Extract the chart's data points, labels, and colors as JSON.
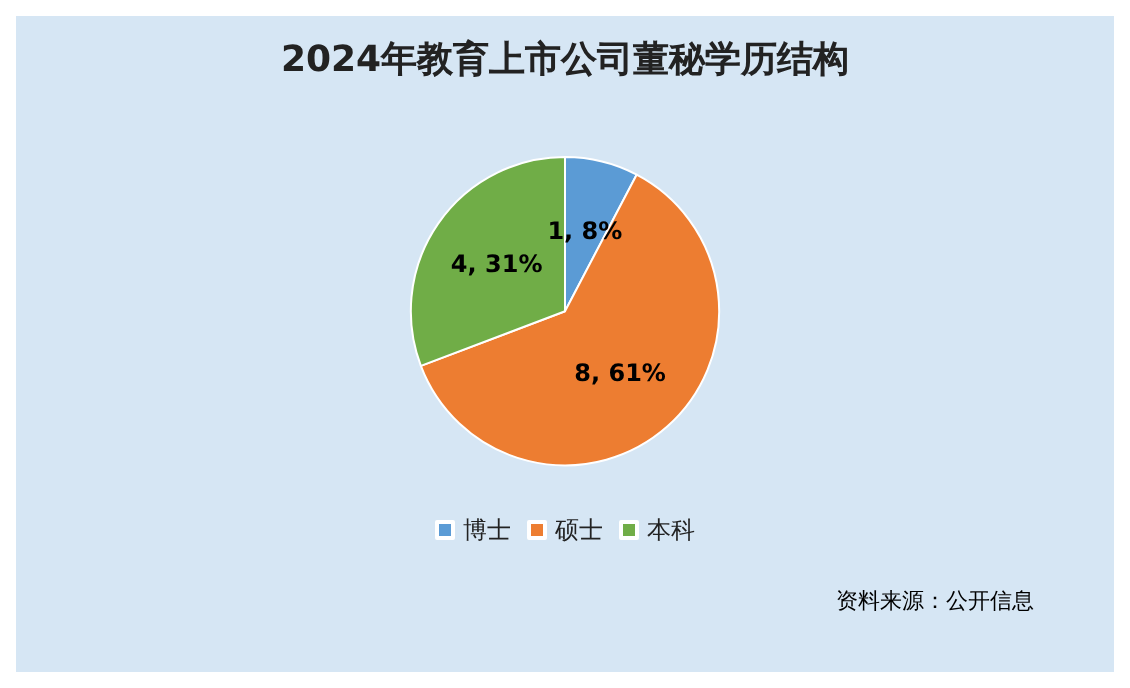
{
  "chart_data": {
    "type": "pie",
    "title": "2024年教育上市公司董秘学历结构",
    "categories": [
      "博士",
      "硕士",
      "本科"
    ],
    "values": [
      1,
      8,
      4
    ],
    "colors": [
      "#5b9bd5",
      "#ed7d31",
      "#70ad47"
    ],
    "value_labels": [
      "1, 8%",
      "8, 61%",
      "4, 31%"
    ],
    "legend": "bottom",
    "annotations": [
      "资料来源：公开信息"
    ]
  }
}
